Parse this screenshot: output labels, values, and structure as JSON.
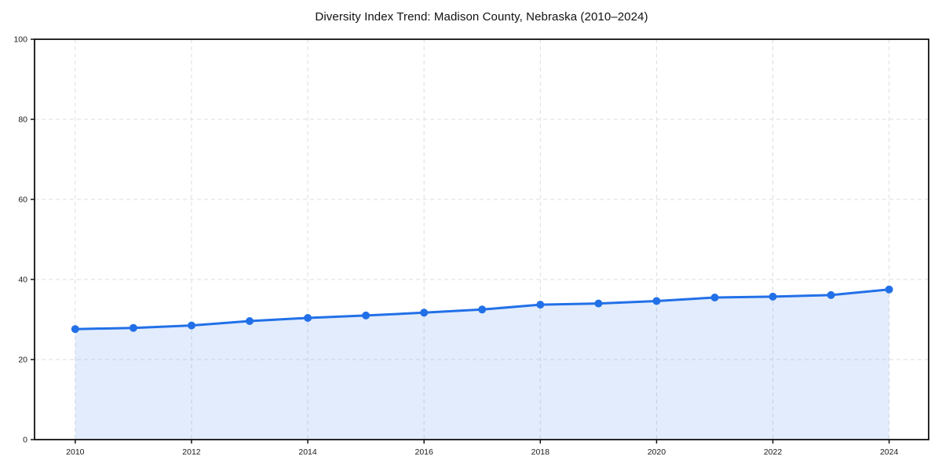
{
  "chart_data": {
    "type": "line",
    "title": "Diversity Index Trend: Madison County, Nebraska (2010–2024)",
    "x": [
      2010,
      2011,
      2012,
      2013,
      2014,
      2015,
      2016,
      2017,
      2018,
      2019,
      2020,
      2021,
      2022,
      2023,
      2024
    ],
    "series": [
      {
        "name": "Diversity Index",
        "values": [
          27.6,
          27.9,
          28.5,
          29.6,
          30.4,
          31.0,
          31.7,
          32.5,
          33.7,
          34.0,
          34.6,
          35.5,
          35.7,
          36.1,
          37.5
        ]
      }
    ],
    "xlabel": "",
    "ylabel": "",
    "xlim": [
      2009.3,
      2024.68
    ],
    "ylim": [
      0,
      100
    ],
    "xticks": [
      2010,
      2012,
      2014,
      2016,
      2018,
      2020,
      2022,
      2024
    ],
    "yticks": [
      0,
      20,
      40,
      60,
      80,
      100
    ],
    "grid": "dashed",
    "legend": "none",
    "area_fill": true,
    "markers": "circle",
    "colors": {
      "line": "#2270e8",
      "marker": "#2270e8",
      "fill": "rgba(34, 112, 232, 0.13)",
      "grid": "#dedede",
      "axis": "#111111",
      "tick_text": "#1a1a1a",
      "background": "#ffffff"
    }
  }
}
